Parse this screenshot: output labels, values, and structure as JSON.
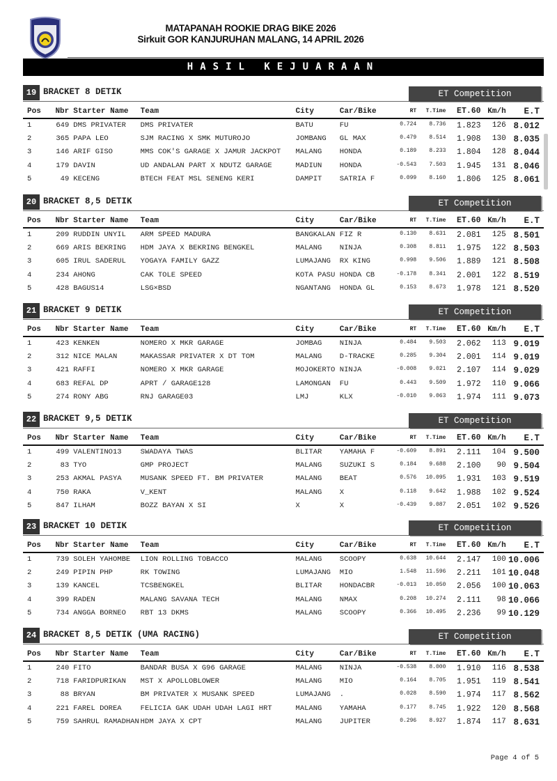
{
  "header": {
    "title_line1": "MATAPANAH ROOKIE DRAG BIKE 2026",
    "title_line2": "Sirkuit GOR KANJURUHAN MALANG, 14 APRIL 2026",
    "banner": "HASIL KEJUARAAN"
  },
  "columns": [
    "Pos",
    "Nbr",
    "Starter Name",
    "Team",
    "City",
    "Car/Bike",
    "RT",
    "T.Time",
    "ET.60",
    "Km/h",
    "E.T"
  ],
  "competition_label": "ET Competition",
  "sections": [
    {
      "num": "19",
      "name": "BRACKET 8 DETIK",
      "rows": [
        [
          "1",
          "649",
          "DMS PRIVATER",
          "DMS PRIVATER",
          "BATU",
          "FU",
          "0.724",
          "8.736",
          "1.823",
          "126",
          "8.012"
        ],
        [
          "2",
          "365",
          "PAPA LEO",
          "SJM RACING X SMK MUTUROJO",
          "JOMBANG",
          "GL MAX",
          "0.479",
          "8.514",
          "1.908",
          "130",
          "8.035"
        ],
        [
          "3",
          "146",
          "ARIF GISO",
          "MMS COK'S GARAGE X JAMUR JACKPOT",
          "MALANG",
          "HONDA",
          "0.189",
          "8.233",
          "1.804",
          "128",
          "8.044"
        ],
        [
          "4",
          "179",
          "DAVIN",
          "UD ANDALAN PART X NDUTZ GARAGE",
          "MADIUN",
          "HONDA",
          "-0.543",
          "7.503",
          "1.945",
          "131",
          "8.046"
        ],
        [
          "5",
          "49",
          "KECENG",
          "BTECH FEAT MSL SENENG KERI",
          "DAMPIT",
          "SATRIA F",
          "0.099",
          "8.160",
          "1.806",
          "125",
          "8.061"
        ]
      ]
    },
    {
      "num": "20",
      "name": "BRACKET 8,5 DETIK",
      "rows": [
        [
          "1",
          "209",
          "RUDDIN UNYIL",
          "ARM SPEED MADURA",
          "BANGKALAN",
          "FIZ R",
          "0.130",
          "8.631",
          "2.081",
          "125",
          "8.501"
        ],
        [
          "2",
          "669",
          "ARIS BEKRING",
          "HDM JAYA X BEKRING BENGKEL",
          "MALANG",
          "NINJA",
          "0.308",
          "8.811",
          "1.975",
          "122",
          "8.503"
        ],
        [
          "3",
          "605",
          "IRUL SADERUL",
          "YOGAYA FAMILY GAZZ",
          "LUMAJANG",
          "RX KING",
          "0.998",
          "9.506",
          "1.889",
          "121",
          "8.508"
        ],
        [
          "4",
          "234",
          "AHONG",
          "CAK TOLE SPEED",
          "KOTA PASU",
          "HONDA CB",
          "-0.178",
          "8.341",
          "2.001",
          "122",
          "8.519"
        ],
        [
          "5",
          "428",
          "BAGUS14",
          "LSG×BSD",
          "NGANTANG",
          "HONDA GL",
          "0.153",
          "8.673",
          "1.978",
          "121",
          "8.520"
        ]
      ]
    },
    {
      "num": "21",
      "name": "BRACKET 9 DETIK",
      "rows": [
        [
          "1",
          "423",
          "KENKEN",
          "NOMERO X MKR GARAGE",
          "JOMBAG",
          "NINJA",
          "0.484",
          "9.503",
          "2.062",
          "113",
          "9.019"
        ],
        [
          "2",
          "312",
          "NICE MALAN",
          "MAKASSAR PRIVATER X DT TOM",
          "MALANG",
          "D-TRACKE",
          "0.285",
          "9.304",
          "2.001",
          "114",
          "9.019"
        ],
        [
          "3",
          "421",
          "RAFFI",
          "NOMERO X MKR GARAGE",
          "MOJOKERTO",
          "NINJA",
          "-0.008",
          "9.021",
          "2.107",
          "114",
          "9.029"
        ],
        [
          "4",
          "683",
          "REFAL DP",
          "APRT / GARAGE128",
          "LAMONGAN",
          "FU",
          "0.443",
          "9.509",
          "1.972",
          "110",
          "9.066"
        ],
        [
          "5",
          "274",
          "RONY ABG",
          "RNJ GARAGE03",
          "LMJ",
          "KLX",
          "-0.010",
          "9.063",
          "1.974",
          "111",
          "9.073"
        ]
      ]
    },
    {
      "num": "22",
      "name": "BRACKET 9,5 DETIK",
      "rows": [
        [
          "1",
          "499",
          "VALENTINO13",
          "SWADAYA TWAS",
          "BLITAR",
          "YAMAHA F",
          "-0.609",
          "8.891",
          "2.111",
          "104",
          "9.500"
        ],
        [
          "2",
          "83",
          "TYO",
          "GMP PROJECT",
          "MALANG",
          "SUZUKI S",
          "0.184",
          "9.688",
          "2.100",
          "90",
          "9.504"
        ],
        [
          "3",
          "253",
          "AKMAL PASYA",
          "MUSANK SPEED FT. BM PRIVATER",
          "MALANG",
          "BEAT",
          "0.576",
          "10.095",
          "1.931",
          "103",
          "9.519"
        ],
        [
          "4",
          "750",
          "RAKA",
          "V_KENT",
          "MALANG",
          "X",
          "0.118",
          "9.642",
          "1.988",
          "102",
          "9.524"
        ],
        [
          "5",
          "847",
          "ILHAM",
          "BOZZ BAYAN X SI",
          "X",
          "X",
          "-0.439",
          "9.087",
          "2.051",
          "102",
          "9.526"
        ]
      ]
    },
    {
      "num": "23",
      "name": "BRACKET 10 DETIK",
      "rows": [
        [
          "1",
          "739",
          "SOLEH YAHOMBE",
          "LION ROLLING TOBACCO",
          "MALANG",
          "SCOOPY",
          "0.638",
          "10.644",
          "2.147",
          "100",
          "10.006"
        ],
        [
          "2",
          "249",
          "PIPIN PHP",
          "RK TOWING",
          "LUMAJANG",
          "MIO",
          "1.548",
          "11.596",
          "2.211",
          "101",
          "10.048"
        ],
        [
          "3",
          "139",
          "KANCEL",
          "TCSBENGKEL",
          "BLITAR",
          "HONDACBR",
          "-0.013",
          "10.050",
          "2.056",
          "100",
          "10.063"
        ],
        [
          "4",
          "399",
          "RADEN",
          "MALANG SAVANA TECH",
          "MALANG",
          "NMAX",
          "0.208",
          "10.274",
          "2.111",
          "98",
          "10.066"
        ],
        [
          "5",
          "734",
          "ANGGA BORNEO",
          "RBT 13 DKMS",
          "MALANG",
          "SCOOPY",
          "0.366",
          "10.495",
          "2.236",
          "99",
          "10.129"
        ]
      ]
    },
    {
      "num": "24",
      "name": "BRACKET 8,5 DETIK (UMA RACING)",
      "rows": [
        [
          "1",
          "240",
          "FITO",
          "BANDAR BUSA X G96 GARAGE",
          "MALANG",
          "NINJA",
          "-0.538",
          "8.000",
          "1.910",
          "116",
          "8.538"
        ],
        [
          "2",
          "718",
          "FARIDPURIKAN",
          "MST X APOLLOBLOWER",
          "MALANG",
          "MIO",
          "0.164",
          "8.705",
          "1.951",
          "119",
          "8.541"
        ],
        [
          "3",
          "88",
          "BRYAN",
          "BM PRIVATER X MUSANK SPEED",
          "LUMAJANG",
          ".",
          "0.028",
          "8.590",
          "1.974",
          "117",
          "8.562"
        ],
        [
          "4",
          "221",
          "FAREL DOREA",
          "FELICIA GAK UDAH UDAH LAGI HRT",
          "MALANG",
          "YAMAHA",
          "0.177",
          "8.745",
          "1.922",
          "120",
          "8.568"
        ],
        [
          "5",
          "759",
          "SAHRUL RAMADHAN",
          "HDM JAYA X CPT",
          "MALANG",
          "JUPITER",
          "0.296",
          "8.927",
          "1.874",
          "117",
          "8.631"
        ]
      ]
    }
  ],
  "footer": {
    "page": "Page 4 of 5"
  },
  "colors": {
    "banner": "#000000",
    "et_box": "#444444",
    "section_number": "#333333"
  }
}
